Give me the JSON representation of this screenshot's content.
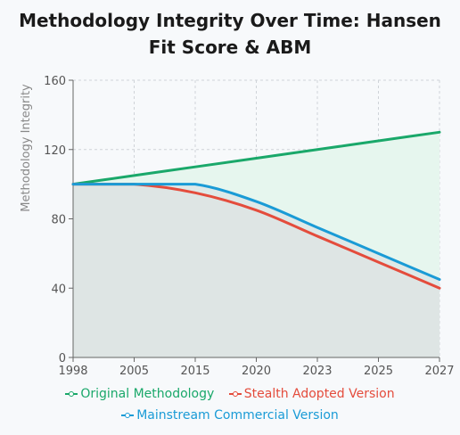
{
  "chart_data": {
    "type": "line",
    "title_lines": [
      "Methodology Integrity Over Time: Hansen",
      "Fit Score & ABM"
    ],
    "ylabel": "Methodology Integrity",
    "xlabel": "",
    "categories": [
      "1998",
      "2005",
      "2015",
      "2020",
      "2023",
      "2025",
      "2027"
    ],
    "ylim": [
      0,
      160
    ],
    "yticks": [
      0,
      40,
      80,
      120,
      160
    ],
    "grid": true,
    "legend_position": "bottom",
    "series": [
      {
        "name": "Original Methodology",
        "color": "#1aa86a",
        "fill": "#e6f6ee",
        "values": [
          100,
          105,
          110,
          115,
          120,
          125,
          130
        ]
      },
      {
        "name": "Stealth Adopted Version",
        "color": "#e44c3c",
        "fill": "#ecd6d3",
        "values": [
          100,
          100,
          95,
          85,
          70,
          55,
          40
        ]
      },
      {
        "name": "Mainstream Commercial Version",
        "color": "#1a9bd6",
        "fill": "#dce6e6",
        "values": [
          100,
          100,
          100,
          90,
          75,
          60,
          45
        ]
      }
    ]
  }
}
